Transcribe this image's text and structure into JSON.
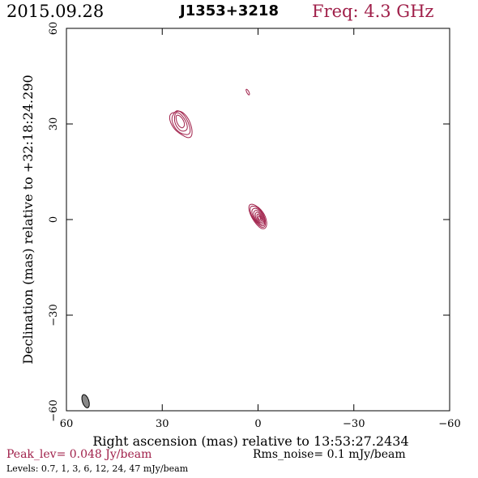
{
  "header": {
    "date": "2015.09.28",
    "source": "J1353+3218",
    "frequency": "Freq: 4.3 GHz"
  },
  "chart_data": {
    "type": "contour",
    "xlabel": "Right ascension (mas) relative to 13:53:27.2434",
    "ylabel": "Declination (mas) relative to +32:18:24.290",
    "xlim": [
      60,
      -60
    ],
    "ylim": [
      -60,
      60
    ],
    "xticks": [
      "60",
      "30",
      "0",
      "−30",
      "−60"
    ],
    "yticks": [
      "−60",
      "−30",
      "0",
      "30",
      "60"
    ],
    "contour_color": "#a0204a",
    "components": [
      {
        "x": 0,
        "y": 1,
        "peak_level": 47
      },
      {
        "x": 24,
        "y": 30,
        "peak_level": 3
      },
      {
        "x": 3.2,
        "y": 40,
        "peak_level": 0.7
      }
    ],
    "beam": {
      "x": 54,
      "y": -57
    }
  },
  "footer": {
    "peak": "Peak_lev=  0.048 Jy/beam",
    "rms": "Rms_noise=  0.1 mJy/beam",
    "levels": "Levels: 0.7,   1,   3,   6,  12,  24,  47 mJy/beam"
  }
}
